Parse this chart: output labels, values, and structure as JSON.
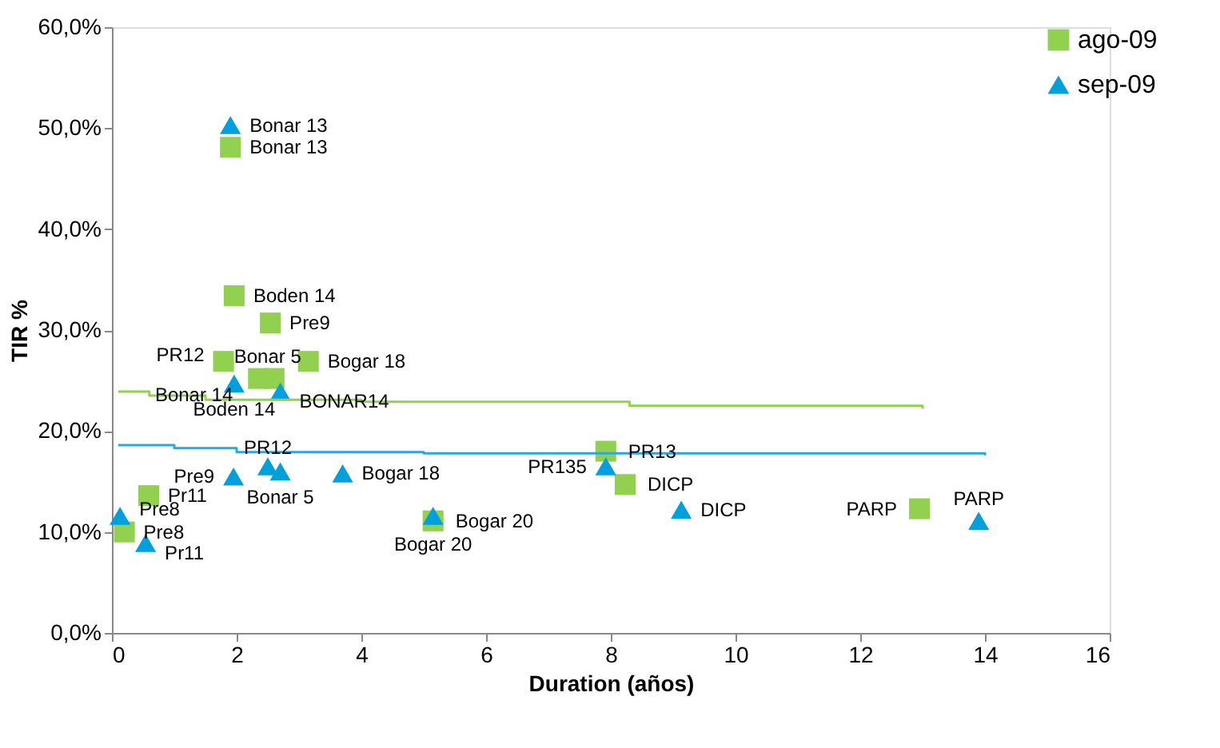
{
  "chart_data": {
    "type": "scatter",
    "xlabel": "Duration (años)",
    "ylabel": "TIR %",
    "xlim": [
      0,
      16
    ],
    "xticks": [
      0,
      2,
      4,
      6,
      8,
      10,
      12,
      14,
      16
    ],
    "ylim": [
      0,
      60
    ],
    "yticks": [
      {
        "value": 0,
        "label": "0,0%"
      },
      {
        "value": 10,
        "label": "10,0%"
      },
      {
        "value": 20,
        "label": "20,0%"
      },
      {
        "value": 30,
        "label": "30,0%"
      },
      {
        "value": 40,
        "label": "40,0%"
      },
      {
        "value": 50,
        "label": "50,0%"
      },
      {
        "value": 60,
        "label": "60,0%"
      }
    ],
    "grid": false,
    "legend": "right",
    "series": [
      {
        "name": "ago-09",
        "marker": "square",
        "color": "#92d050",
        "x": [
          1.9,
          1.96,
          2.54,
          1.79,
          3.15,
          2.35,
          2.6,
          0.59,
          0.2,
          5.15,
          7.92,
          8.23,
          12.95
        ],
        "values": [
          48.1,
          33.4,
          30.7,
          26.9,
          26.9,
          25.2,
          25.2,
          13.6,
          10.0,
          11.1,
          18.0,
          14.7,
          12.3
        ],
        "value_labels": [
          "Bonar 13",
          "Boden 14",
          "Pre9",
          "PR12",
          "Bogar 18",
          "Bonar 14",
          "Bonar 5",
          "Pr11",
          "Pre8",
          "Bogar 20",
          "PR13",
          "DICP",
          "PARP"
        ]
      },
      {
        "name": "sep-09",
        "marker": "triangle",
        "color": "#00a0dc",
        "x": [
          1.9,
          1.96,
          2.7,
          0.13,
          0.54,
          1.95,
          2.5,
          2.7,
          3.7,
          5.15,
          7.92,
          9.13,
          13.9
        ],
        "values": [
          50.3,
          24.7,
          23.9,
          11.6,
          8.9,
          15.5,
          16.5,
          16.0,
          15.8,
          11.6,
          16.5,
          12.2,
          11.1
        ],
        "value_labels": [
          "Bonar 13",
          "Boden 14",
          "BONAR14",
          "Pre8",
          "Pr11",
          "Pre9",
          "PR12",
          "Bonar 5",
          "Bogar 18",
          "Bogar 20",
          "PR135",
          "DICP",
          "PARP"
        ]
      },
      {
        "type": "line",
        "marker": "none",
        "color": "#92d050",
        "x": [
          0.1,
          0.6,
          1.5,
          4,
          8.3,
          13
        ],
        "values": [
          23.9,
          23.5,
          23.1,
          22.9,
          22.5,
          22.2
        ]
      },
      {
        "type": "line",
        "marker": "none",
        "color": "#29a8e0",
        "x": [
          0.1,
          1,
          2,
          5,
          14
        ],
        "values": [
          18.6,
          18.3,
          17.9,
          17.8,
          17.6
        ]
      }
    ]
  }
}
